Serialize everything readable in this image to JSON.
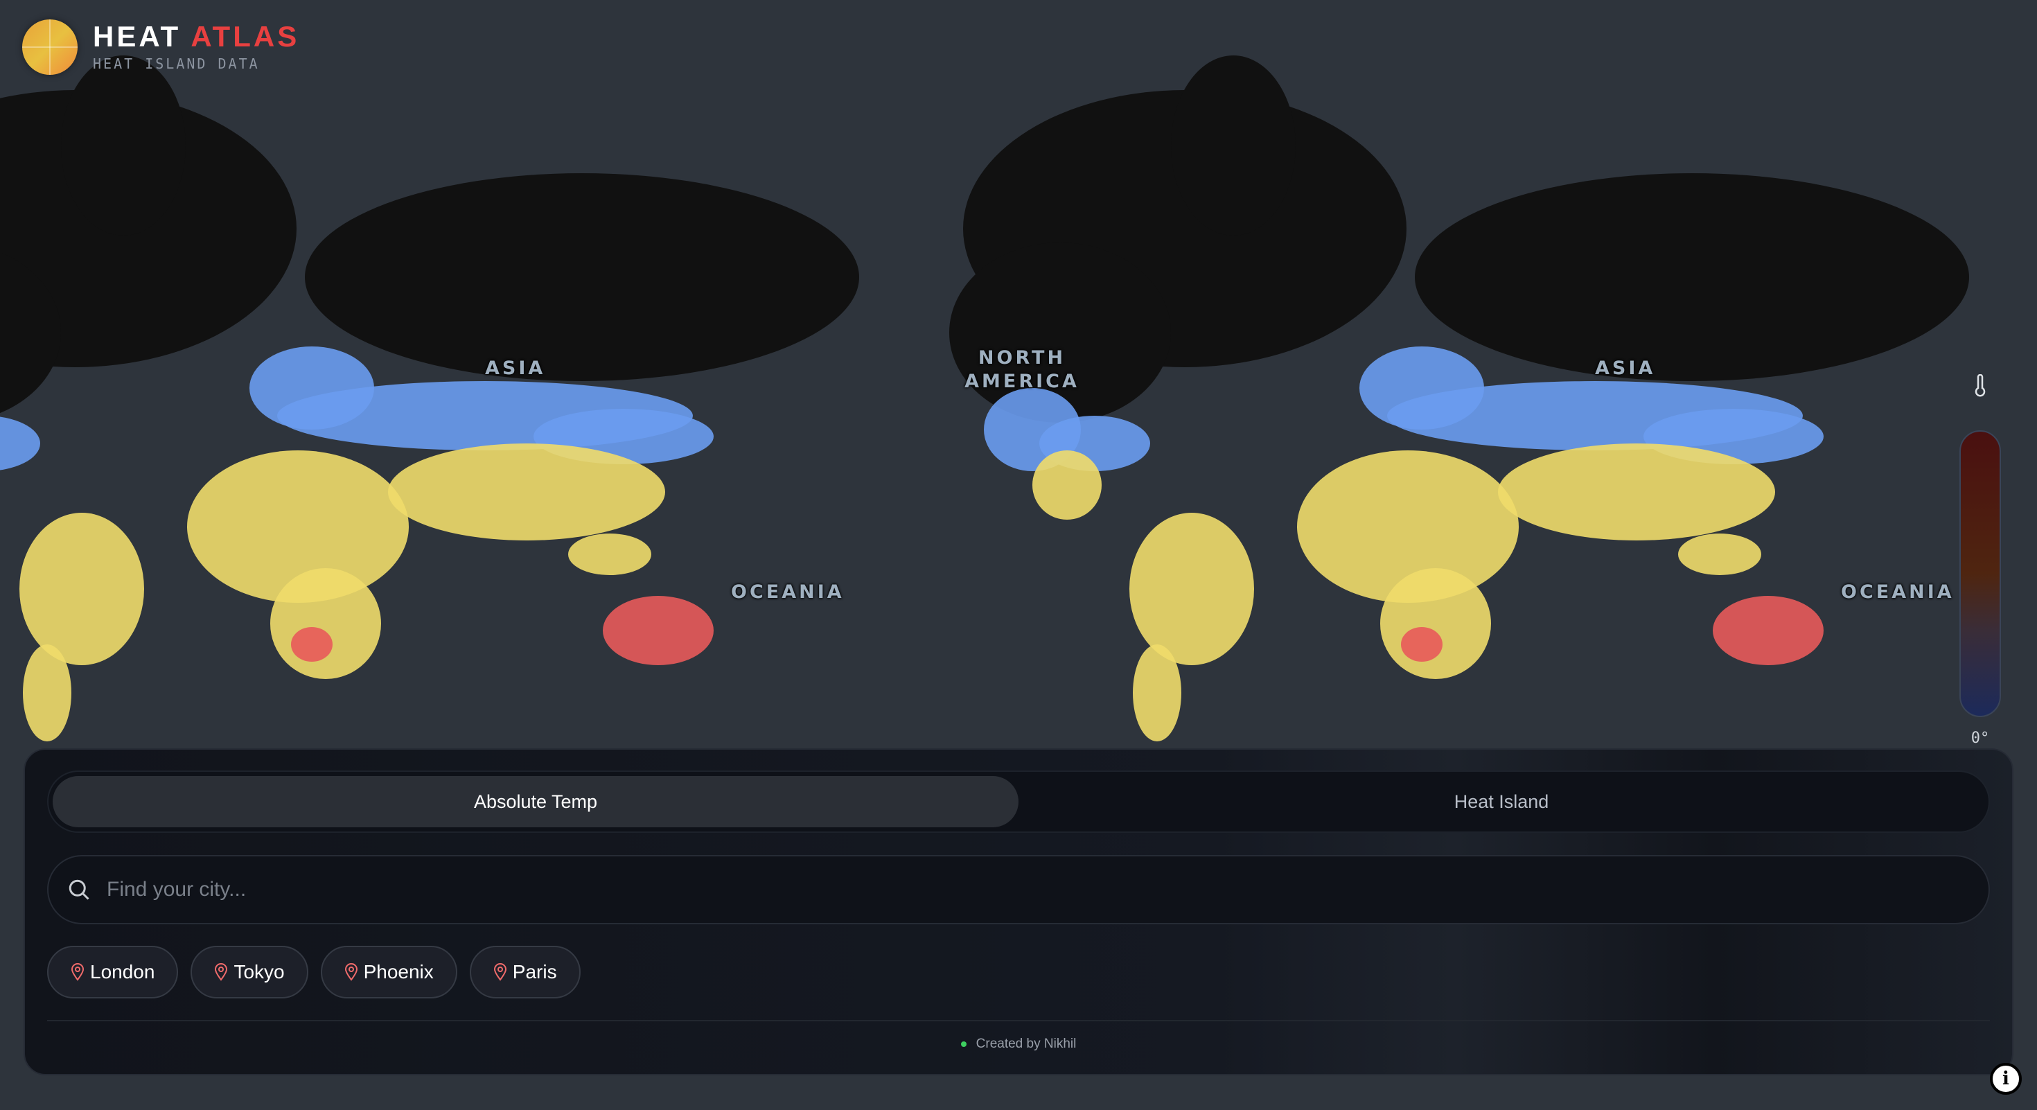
{
  "brand": {
    "title_main": "HEAT",
    "title_accent": "ATLAS",
    "subtitle": "HEAT ISLAND DATA",
    "accent_color": "#e84040"
  },
  "map": {
    "region_labels": [
      "ASIA",
      "NORTH AMERICA",
      "OCEANIA",
      "ASIA",
      "OCEANIA"
    ],
    "colors": {
      "background": "#2e343c",
      "land": "#111111",
      "cold": "#6a9cf0",
      "mild": "#f0dc6a",
      "hot": "#e85a5a"
    }
  },
  "legend": {
    "icon": "thermometer-icon",
    "min_label": "0°",
    "gradient": [
      "#4a1010",
      "#4f2510",
      "#3a2d38",
      "#1c2a5a"
    ]
  },
  "panel": {
    "modes": [
      {
        "label": "Absolute Temp",
        "active": true
      },
      {
        "label": "Heat Island",
        "active": false
      }
    ],
    "search": {
      "placeholder": "Find your city...",
      "value": ""
    },
    "quick_cities": [
      "London",
      "Tokyo",
      "Phoenix",
      "Paris"
    ],
    "footer": "Created by Nikhil"
  }
}
